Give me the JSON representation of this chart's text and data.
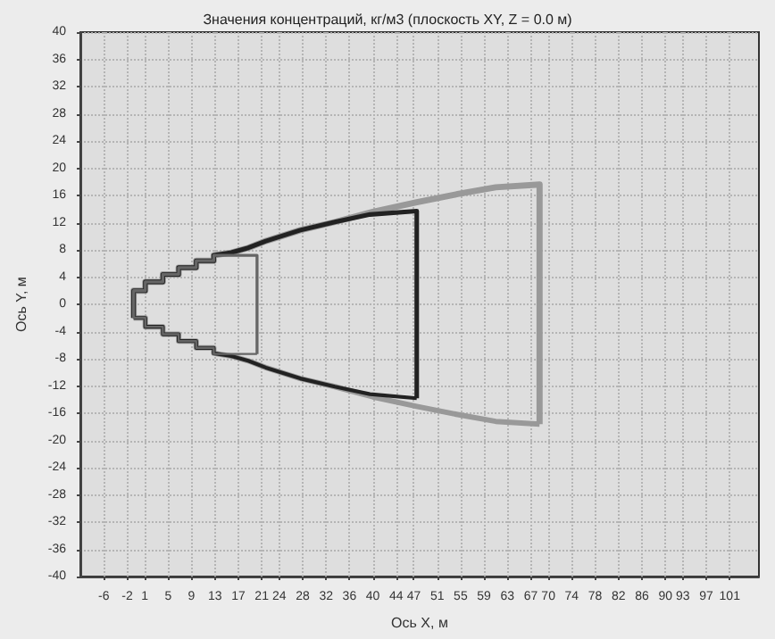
{
  "chart_data": {
    "type": "line",
    "title": "Значения концентраций, кг/м3 (плоскость XY, Z = 0.0 м)",
    "xlabel": "Ось X, м",
    "ylabel": "Ось Y, м",
    "xlim": [
      -10,
      106
    ],
    "ylim": [
      -40,
      40
    ],
    "xticks": [
      -6,
      -2,
      1,
      5,
      9,
      13,
      17,
      21,
      24,
      28,
      32,
      36,
      40,
      44,
      47,
      51,
      55,
      59,
      63,
      67,
      70,
      74,
      78,
      82,
      86,
      90,
      93,
      97,
      101
    ],
    "yticks": [
      -40,
      -36,
      -32,
      -28,
      -24,
      -20,
      -16,
      -12,
      -8,
      -4,
      0,
      4,
      8,
      12,
      16,
      20,
      24,
      28,
      32,
      36,
      40
    ],
    "grid": true,
    "marker": "none",
    "line_style": "solid",
    "series": [
      {
        "color": "#999999",
        "x": [
          -0.9,
          -0.9,
          1.1,
          1.1,
          4.1,
          4.1,
          6.8,
          6.8,
          9.8,
          9.8,
          12.8,
          12.8,
          15.8,
          18.7,
          21.7,
          27.6,
          33.5,
          40,
          47.5,
          54.5,
          61,
          68.5,
          68.5
        ],
        "values": [
          -2,
          2,
          2,
          3.3,
          3.3,
          4.4,
          4.4,
          5.4,
          5.4,
          6.4,
          6.4,
          7.2,
          7.6,
          8.3,
          9.3,
          10.9,
          12.1,
          13.6,
          15,
          16.2,
          17.2,
          17.6,
          -17.6
        ]
      },
      {
        "color": "#999999",
        "x": [
          -0.9,
          1.1,
          1.1,
          4.1,
          4.1,
          6.8,
          6.8,
          9.8,
          9.8,
          12.8,
          12.8,
          15.8,
          18.7,
          21.7,
          27.6,
          33.5,
          40,
          47.5,
          54.5,
          61,
          68.5
        ],
        "values": [
          -2,
          -2,
          -3.3,
          -3.3,
          -4.4,
          -4.4,
          -5.4,
          -5.4,
          -6.4,
          -6.4,
          -7.2,
          -7.6,
          -8.3,
          -9.3,
          -10.9,
          -12.1,
          -13.6,
          -15,
          -16.2,
          -17.2,
          -17.6
        ]
      },
      {
        "color": "#222222",
        "x": [
          -0.9,
          -0.9,
          1.1,
          1.1,
          4.1,
          4.1,
          6.8,
          6.8,
          9.8,
          9.8,
          12.8,
          12.8,
          15.8,
          18.7,
          21.7,
          27.6,
          33.5,
          39.5,
          47.5,
          47.5
        ],
        "values": [
          -2,
          2,
          2,
          3.3,
          3.3,
          4.4,
          4.4,
          5.4,
          5.4,
          6.4,
          6.4,
          7.2,
          7.6,
          8.3,
          9.3,
          10.9,
          12.1,
          13.2,
          13.7,
          -13.8
        ]
      },
      {
        "color": "#222222",
        "x": [
          -0.9,
          1.1,
          1.1,
          4.1,
          4.1,
          6.8,
          6.8,
          9.8,
          9.8,
          12.8,
          12.8,
          15.8,
          18.7,
          21.7,
          27.6,
          33.5,
          39.5,
          47.5
        ],
        "values": [
          -2,
          -2,
          -3.3,
          -3.3,
          -4.4,
          -4.4,
          -5.4,
          -5.4,
          -6.4,
          -6.4,
          -7.2,
          -7.6,
          -8.3,
          -9.3,
          -10.9,
          -12.1,
          -13.2,
          -13.8
        ]
      },
      {
        "color": "#666666",
        "x": [
          -0.9,
          -0.9,
          1.1,
          1.1,
          4.1,
          4.1,
          6.8,
          6.8,
          9.8,
          9.8,
          12.8,
          12.8,
          20.2,
          20.2
        ],
        "values": [
          -2,
          2,
          2,
          3.3,
          3.3,
          4.4,
          4.4,
          5.4,
          5.4,
          6.4,
          6.4,
          7.2,
          7.2,
          -7.3
        ]
      },
      {
        "color": "#666666",
        "x": [
          -0.9,
          1.1,
          1.1,
          4.1,
          4.1,
          6.8,
          6.8,
          9.8,
          9.8,
          12.8,
          12.8,
          20.2
        ],
        "values": [
          -2,
          -2,
          -3.3,
          -3.3,
          -4.4,
          -4.4,
          -5.4,
          -5.4,
          -6.4,
          -6.4,
          -7.3,
          -7.3
        ]
      }
    ]
  }
}
